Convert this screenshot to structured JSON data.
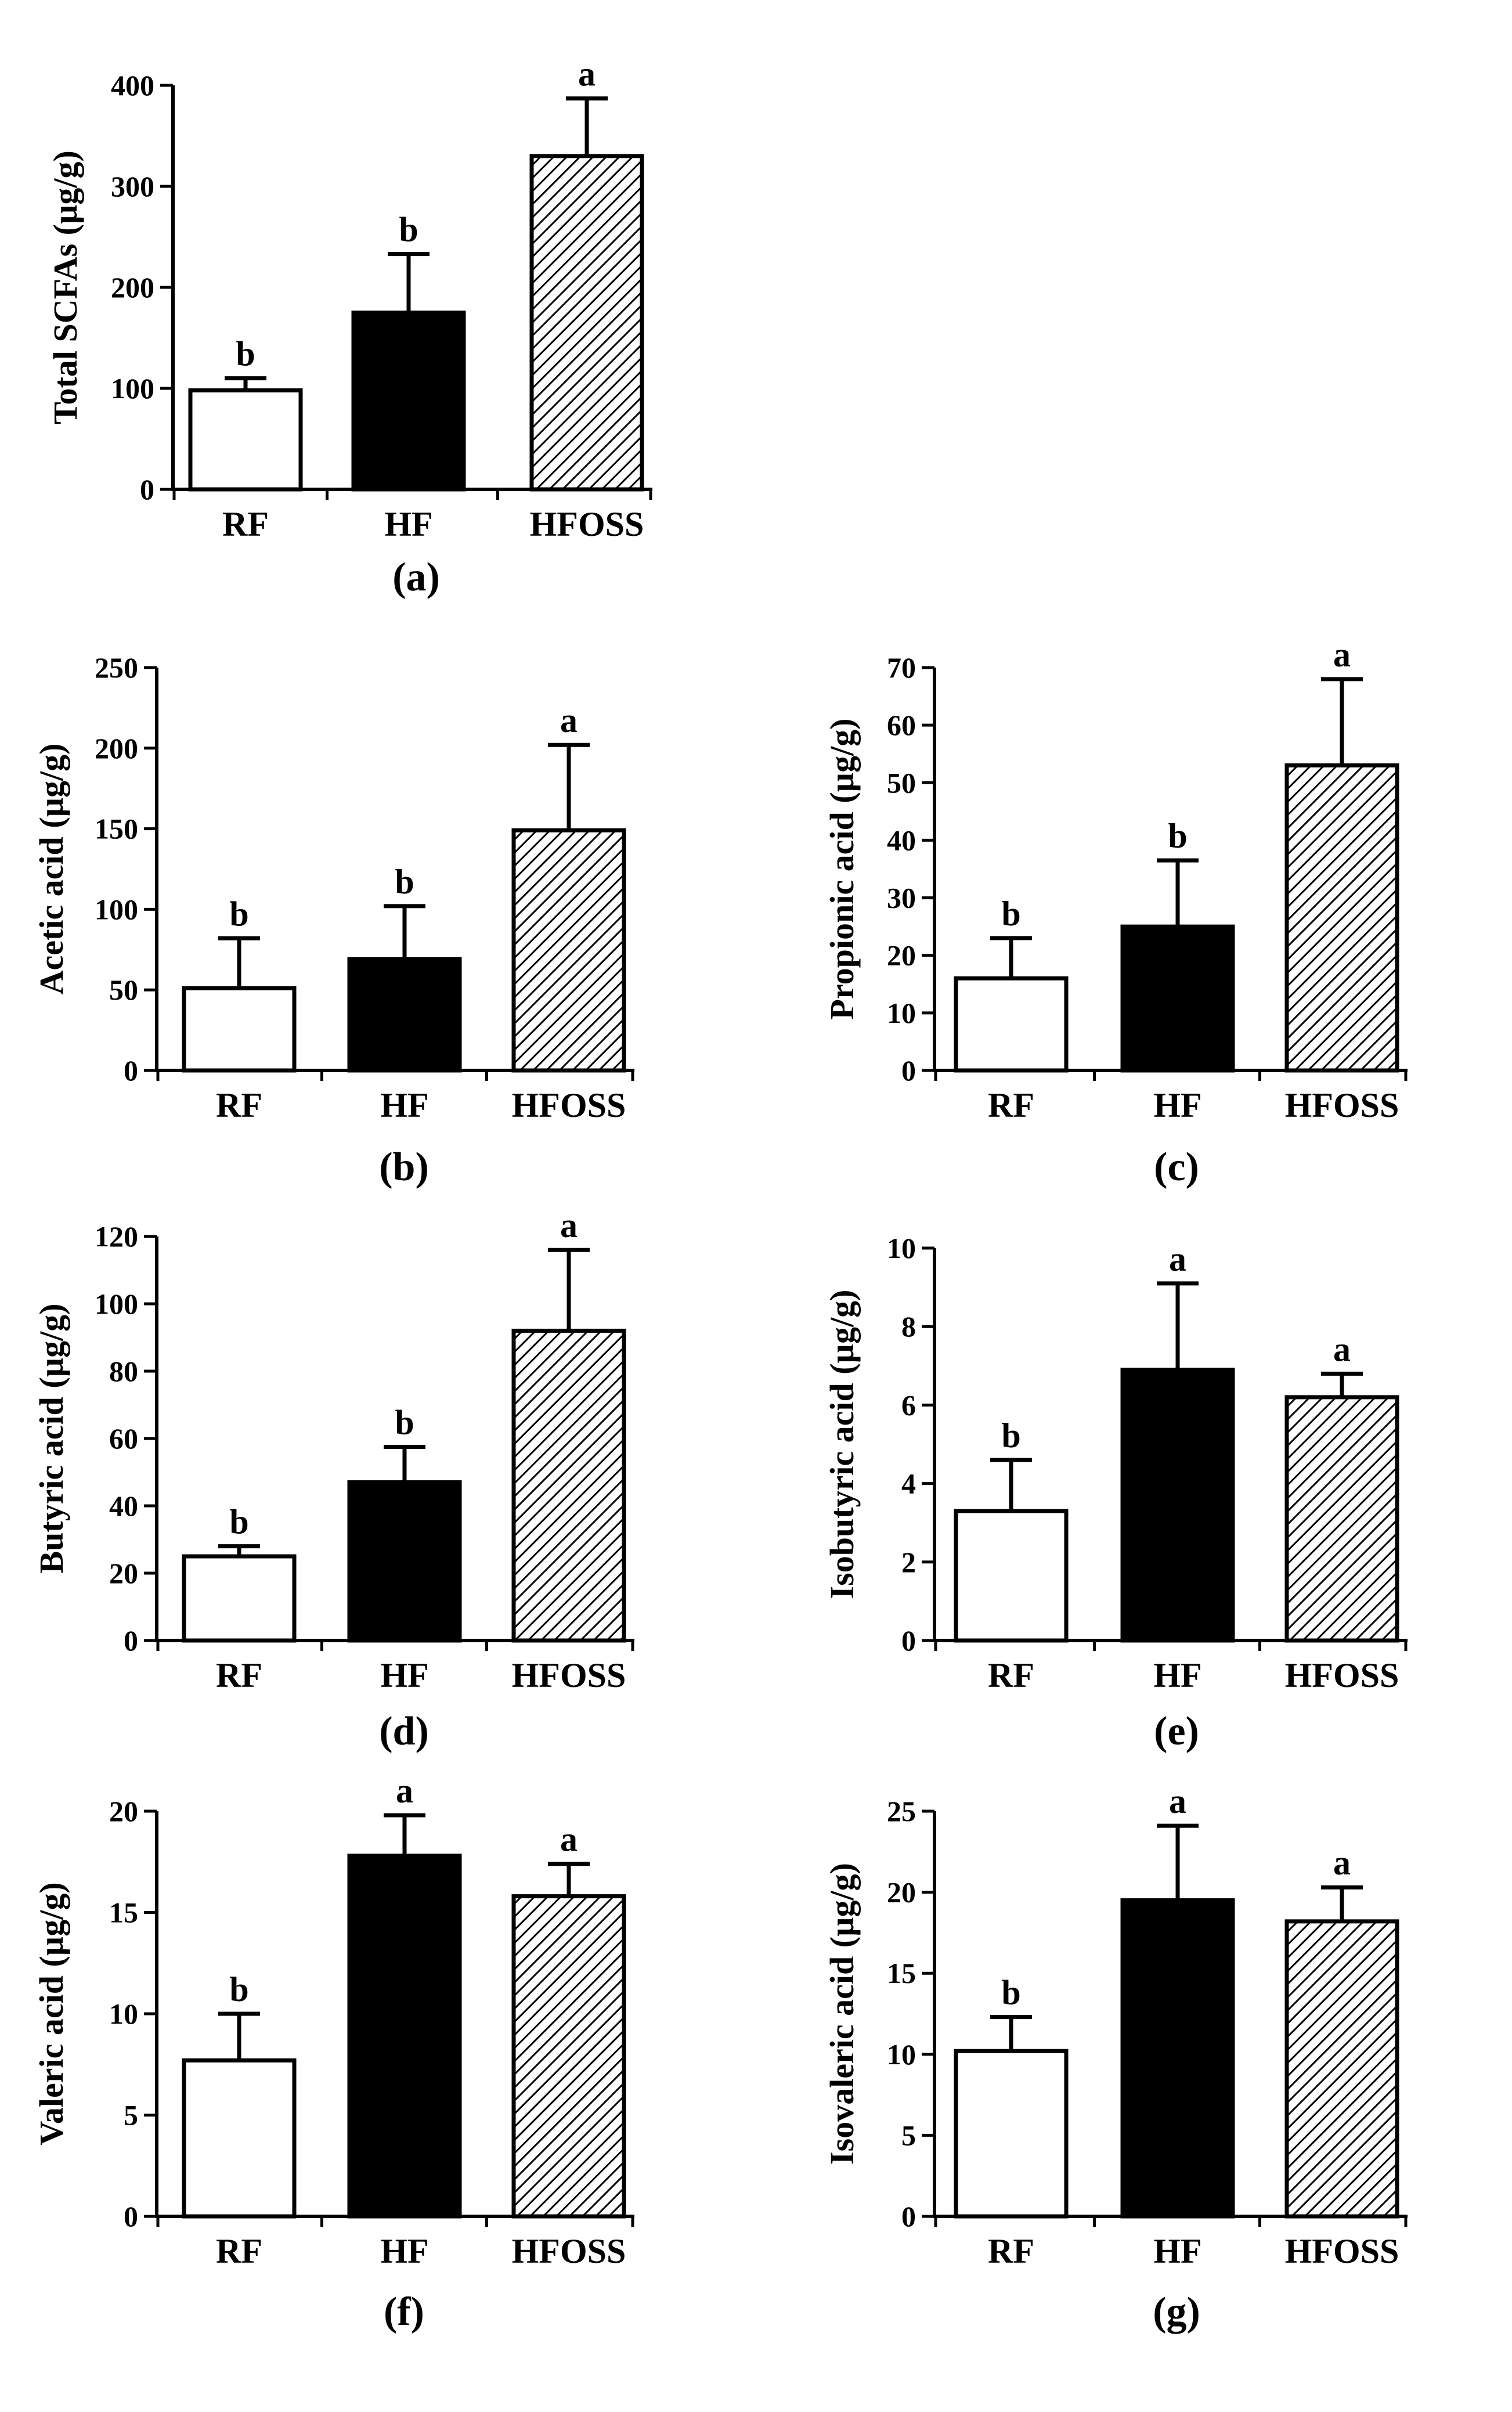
{
  "figure": {
    "categories": [
      "RF",
      "HF",
      "HFOSS"
    ],
    "colors": {
      "RF": "#ffffff",
      "HF": "#000000",
      "HFOSS": "hatch",
      "stroke": "#000000"
    }
  },
  "chart_data": [
    {
      "id": "a",
      "type": "bar",
      "panel_label": "(a)",
      "ylabel": "Total SCFAs (µg/g)",
      "categories": [
        "RF",
        "HF",
        "HFOSS"
      ],
      "values": [
        98,
        175,
        330
      ],
      "errors": [
        12,
        58,
        57
      ],
      "significance": [
        "b",
        "b",
        "a"
      ],
      "ylim": [
        0,
        400
      ],
      "yticks": [
        0,
        100,
        200,
        300,
        400
      ]
    },
    {
      "id": "b",
      "type": "bar",
      "panel_label": "(b)",
      "ylabel": "Acetic acid (µg/g)",
      "categories": [
        "RF",
        "HF",
        "HFOSS"
      ],
      "values": [
        51,
        69,
        149
      ],
      "errors": [
        31,
        33,
        53
      ],
      "significance": [
        "b",
        "b",
        "a"
      ],
      "ylim": [
        0,
        250
      ],
      "yticks": [
        0,
        50,
        100,
        150,
        200,
        250
      ]
    },
    {
      "id": "c",
      "type": "bar",
      "panel_label": "(c)",
      "ylabel": "Propionic acid (µg/g)",
      "categories": [
        "RF",
        "HF",
        "HFOSS"
      ],
      "values": [
        16,
        25,
        53
      ],
      "errors": [
        7,
        11.5,
        15
      ],
      "significance": [
        "b",
        "b",
        "a"
      ],
      "ylim": [
        0,
        70
      ],
      "yticks": [
        0,
        10,
        20,
        30,
        40,
        50,
        60,
        70
      ]
    },
    {
      "id": "d",
      "type": "bar",
      "panel_label": "(d)",
      "ylabel": "Butyric acid (µg/g)",
      "categories": [
        "RF",
        "HF",
        "HFOSS"
      ],
      "values": [
        25,
        47,
        92
      ],
      "errors": [
        3,
        10.5,
        24
      ],
      "significance": [
        "b",
        "b",
        "a"
      ],
      "ylim": [
        0,
        120
      ],
      "yticks": [
        0,
        20,
        40,
        60,
        80,
        100,
        120
      ]
    },
    {
      "id": "e",
      "type": "bar",
      "panel_label": "(e)",
      "ylabel": "Isobutyric acid (µg/g)",
      "categories": [
        "RF",
        "HF",
        "HFOSS"
      ],
      "values": [
        3.3,
        6.9,
        6.2
      ],
      "errors": [
        1.3,
        2.2,
        0.6
      ],
      "significance": [
        "b",
        "a",
        "a"
      ],
      "ylim": [
        0,
        10
      ],
      "yticks": [
        0,
        2,
        4,
        6,
        8,
        10
      ]
    },
    {
      "id": "f",
      "type": "bar",
      "panel_label": "(f)",
      "ylabel": "Valeric acid (µg/g)",
      "categories": [
        "RF",
        "HF",
        "HFOSS"
      ],
      "values": [
        7.7,
        17.8,
        15.8
      ],
      "errors": [
        2.3,
        2.0,
        1.6
      ],
      "significance": [
        "b",
        "a",
        "a"
      ],
      "ylim": [
        0,
        20
      ],
      "yticks": [
        0,
        5,
        10,
        15,
        20
      ]
    },
    {
      "id": "g",
      "type": "bar",
      "panel_label": "(g)",
      "ylabel": "Isovaleric acid (µg/g)",
      "categories": [
        "RF",
        "HF",
        "HFOSS"
      ],
      "values": [
        10.2,
        19.5,
        18.2
      ],
      "errors": [
        2.1,
        4.6,
        2.1
      ],
      "significance": [
        "b",
        "a",
        "a"
      ],
      "ylim": [
        0,
        25
      ],
      "yticks": [
        0,
        5,
        10,
        15,
        20,
        25
      ]
    }
  ]
}
